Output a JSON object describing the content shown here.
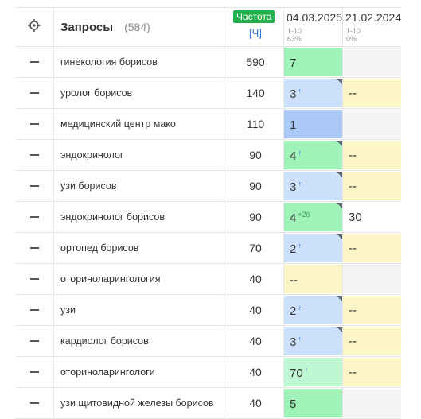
{
  "header": {
    "queries_label": "Запросы",
    "queries_count": "(584)",
    "freq_label": "Частота",
    "freq_sub": "[Ч]",
    "dates": [
      {
        "date": "04.03.2025",
        "range": "1-10",
        "pct": "63%"
      },
      {
        "date": "21.02.2024",
        "range": "1-10",
        "pct": "0%"
      }
    ]
  },
  "colors": {
    "green": "#9ff2b8",
    "blue": "#cde0fb",
    "yellow": "#fbf5c8",
    "badge": "#22b04b"
  },
  "rows": [
    {
      "query": "гинекология борисов",
      "freq": "590",
      "p1": {
        "v": "7",
        "d": "",
        "bg": "green",
        "corner": false
      },
      "p2": {
        "v": "",
        "bg": "gray"
      }
    },
    {
      "query": "уролог борисов",
      "freq": "140",
      "p1": {
        "v": "3",
        "d": "↑",
        "bg": "blue",
        "corner": true
      },
      "p2": {
        "v": "--",
        "bg": "yellow"
      }
    },
    {
      "query": "медицинский центр мако",
      "freq": "110",
      "p1": {
        "v": "1",
        "d": "",
        "bg": "dblue",
        "corner": false
      },
      "p2": {
        "v": "",
        "bg": "gray"
      }
    },
    {
      "query": "эндокринолог",
      "freq": "90",
      "p1": {
        "v": "4",
        "d": "↑",
        "bg": "green",
        "corner": true
      },
      "p2": {
        "v": "--",
        "bg": "yellow"
      }
    },
    {
      "query": "узи борисов",
      "freq": "90",
      "p1": {
        "v": "3",
        "d": "↑",
        "bg": "blue",
        "corner": true
      },
      "p2": {
        "v": "--",
        "bg": "yellow"
      }
    },
    {
      "query": "эндокринолог борисов",
      "freq": "90",
      "p1": {
        "v": "4",
        "d": "+26",
        "bg": "green",
        "corner": true
      },
      "p2": {
        "v": "30",
        "bg": "none"
      }
    },
    {
      "query": "ортопед борисов",
      "freq": "70",
      "p1": {
        "v": "2",
        "d": "↑",
        "bg": "blue",
        "corner": true
      },
      "p2": {
        "v": "--",
        "bg": "yellow"
      }
    },
    {
      "query": "оториноларингология",
      "freq": "40",
      "p1": {
        "v": "--",
        "d": "",
        "bg": "yellow",
        "corner": false
      },
      "p2": {
        "v": "",
        "bg": "gray"
      }
    },
    {
      "query": "узи",
      "freq": "40",
      "p1": {
        "v": "2",
        "d": "↑",
        "bg": "blue",
        "corner": true
      },
      "p2": {
        "v": "--",
        "bg": "yellow"
      }
    },
    {
      "query": "кардиолог борисов",
      "freq": "40",
      "p1": {
        "v": "3",
        "d": "↑",
        "bg": "blue",
        "corner": true
      },
      "p2": {
        "v": "--",
        "bg": "yellow"
      }
    },
    {
      "query": "оториноларингологи",
      "freq": "40",
      "p1": {
        "v": "70",
        "d": "↑",
        "bg": "lgreen",
        "corner": false
      },
      "p2": {
        "v": "--",
        "bg": "yellow"
      }
    },
    {
      "query": "узи щитовидной железы борисов",
      "freq": "40",
      "p1": {
        "v": "5",
        "d": "",
        "bg": "green",
        "corner": false
      },
      "p2": {
        "v": "",
        "bg": "gray"
      }
    }
  ]
}
